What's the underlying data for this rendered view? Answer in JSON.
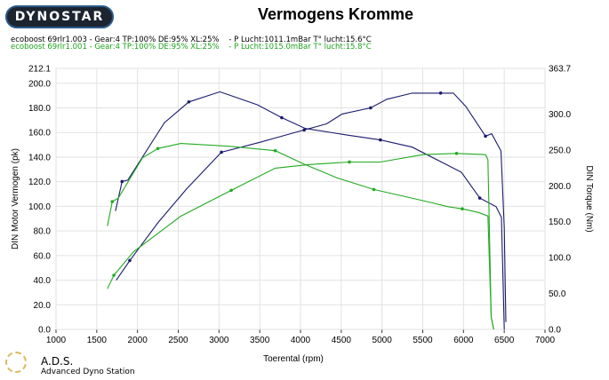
{
  "header": {
    "logo_text": "DYNOSTAR",
    "title": "Vermogens Kromme",
    "runs": [
      {
        "label": "ecoboost 69rlr1.003 - Gear:4 TP:100% DE:95% XL:25%    - P Lucht:1011.1mBar T° lucht:15.6°C",
        "color": "#1a1a6e"
      },
      {
        "label": "ecoboost 69rlr1.001 - Gear:4 TP:100% DE:95% XL:25%    - P Lucht:1015.0mBar T° lucht:15.8°C",
        "color": "#22aa22"
      }
    ]
  },
  "footer": {
    "brand": "A.D.S.",
    "brand_full": "Advanced Dyno Station"
  },
  "chart_data": {
    "type": "line",
    "title": "Vermogens Kromme",
    "xlabel": "Toerental (rpm)",
    "ylabel": "DIN Motor Vermogen (pk)",
    "y2label": "DIN Torque (Nm)",
    "xlim": [
      1000,
      7000
    ],
    "ylim": [
      0,
      212.1
    ],
    "y2lim": [
      0,
      363.7
    ],
    "xticks": [
      "1000",
      "1500",
      "2000",
      "2500",
      "3000",
      "3500",
      "4000",
      "4500",
      "5000",
      "5500",
      "6000",
      "6500",
      "7000"
    ],
    "yticks": [
      "0.0",
      "20.0",
      "40.0",
      "60.0",
      "80.0",
      "100.0",
      "120.0",
      "140.0",
      "160.0",
      "180.0",
      "200.0",
      "212.1"
    ],
    "y2ticks": [
      "0.0",
      "50.0",
      "100.0",
      "150.0",
      "200.0",
      "250.0",
      "300.0",
      "363.7"
    ],
    "grid": true,
    "series": [
      {
        "run": "ecoboost 69rlr1.003",
        "quantity": "power",
        "axis": "left",
        "color": "#1a1a6e",
        "x": [
          1740,
          1905,
          2255,
          2600,
          3030,
          3500,
          3770,
          4045,
          4320,
          4510,
          4860,
          5060,
          5370,
          5720,
          5876,
          6030,
          6270,
          6345,
          6460,
          6500,
          6520
        ],
        "y": [
          40,
          56,
          87,
          114,
          144,
          152,
          157,
          162,
          167,
          175,
          180,
          187,
          192,
          192,
          192,
          181,
          157,
          159,
          145,
          82,
          6
        ]
      },
      {
        "run": "ecoboost 69rlr1.003",
        "quantity": "torque",
        "axis": "right",
        "color": "#1a1a6e",
        "x": [
          1730,
          1810,
          1880,
          2330,
          2630,
          3010,
          3470,
          3770,
          4060,
          4560,
          4980,
          5370,
          5975,
          6200,
          6400,
          6465,
          6500
        ],
        "y": [
          165,
          206,
          208,
          288,
          317,
          331,
          313,
          295,
          280,
          271,
          264,
          254,
          219,
          183,
          171,
          156,
          0
        ]
      },
      {
        "run": "ecoboost 69rlr1.001",
        "quantity": "power",
        "axis": "left",
        "color": "#22aa22",
        "x": [
          1630,
          1710,
          1950,
          2530,
          3150,
          3690,
          4110,
          4600,
          4980,
          5500,
          5915,
          6270,
          6300,
          6340,
          6370
        ],
        "y": [
          33,
          44,
          63,
          92,
          113,
          131,
          134,
          136,
          136,
          142,
          143,
          142,
          138,
          10,
          0
        ]
      },
      {
        "run": "ecoboost 69rlr1.001",
        "quantity": "torque",
        "axis": "right",
        "color": "#22aa22",
        "x": [
          1630,
          1690,
          1765,
          2060,
          2250,
          2530,
          3150,
          3690,
          4050,
          4450,
          4900,
          5590,
          5810,
          5985,
          6180,
          6300,
          6340,
          6370
        ],
        "y": [
          144,
          178,
          183,
          239,
          252,
          259,
          255,
          249,
          230,
          211,
          195,
          177,
          171,
          168,
          163,
          158,
          17,
          0
        ]
      }
    ]
  }
}
